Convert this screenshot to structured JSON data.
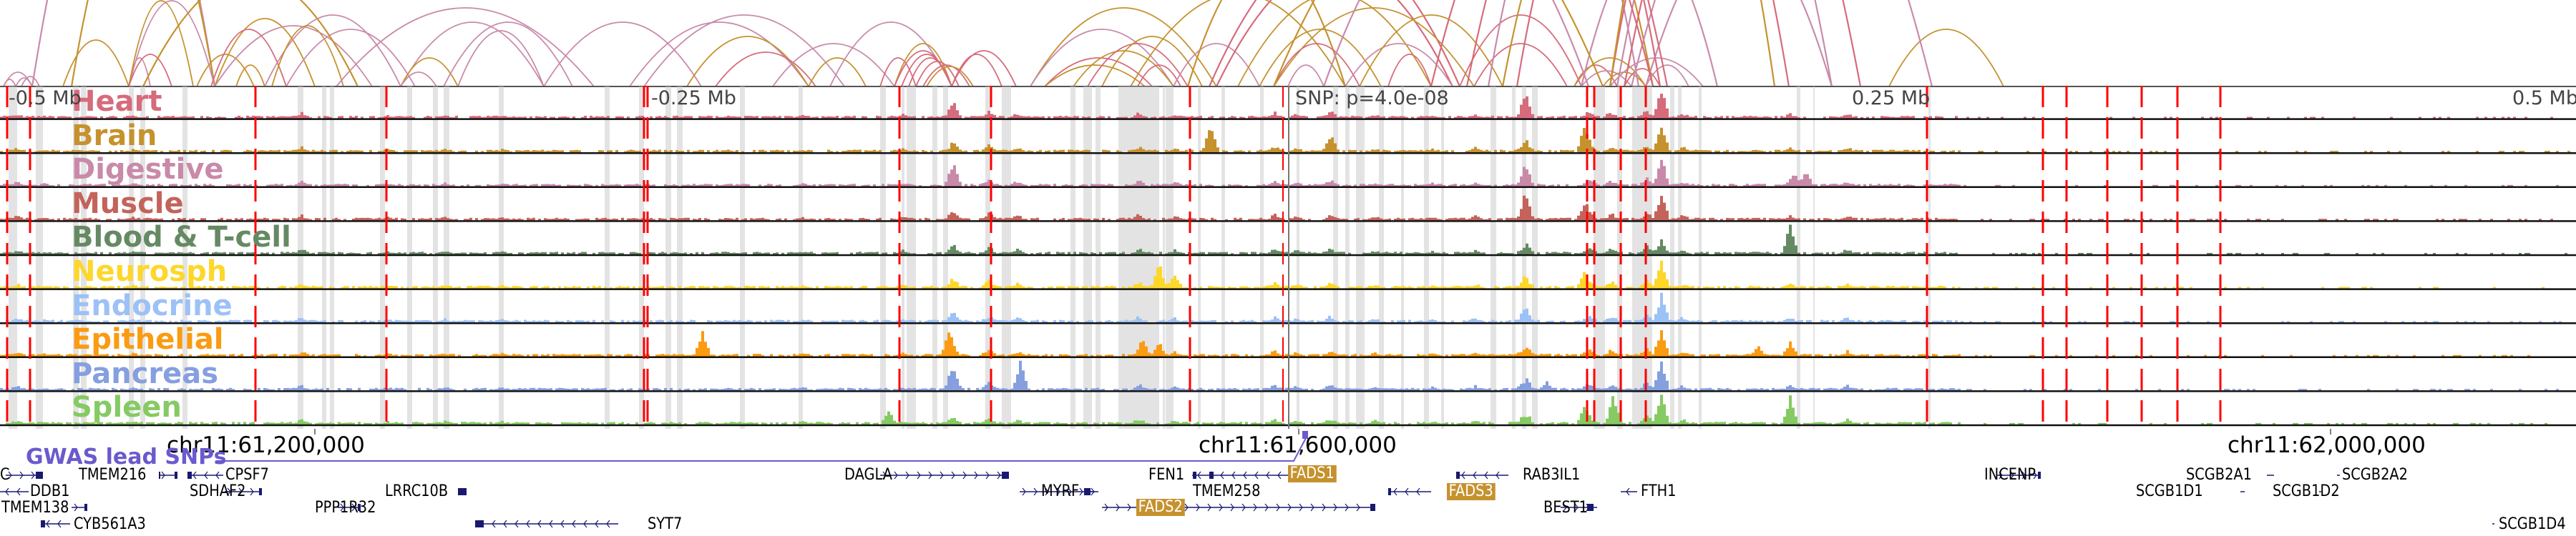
{
  "colors": {
    "heart": "#d66b7b",
    "brain": "#c5922e",
    "digestive": "#c98aaa",
    "muscle": "#c4635a",
    "blood": "#658a63",
    "neurosph": "#fdd72a",
    "endocrine": "#9cc1f7",
    "epithelial": "#fa9b11",
    "pancreas": "#859fdf",
    "spleen": "#85ca63",
    "snp_line": "#ff0000",
    "highlight_band": "#e3e3e3",
    "gwas": "#6a5acd",
    "gene": "#191970",
    "gene_highlight": "#c5922e"
  },
  "tracks": [
    {
      "name": "Heart",
      "color_key": "heart"
    },
    {
      "name": "Brain",
      "color_key": "brain"
    },
    {
      "name": "Digestive",
      "color_key": "digestive"
    },
    {
      "name": "Muscle",
      "color_key": "muscle"
    },
    {
      "name": "Blood & T-cell",
      "color_key": "blood"
    },
    {
      "name": "Neurosph",
      "color_key": "neurosph"
    },
    {
      "name": "Endocrine",
      "color_key": "endocrine"
    },
    {
      "name": "Epithelial",
      "color_key": "epithelial"
    },
    {
      "name": "Pancreas",
      "color_key": "pancreas"
    },
    {
      "name": "Spleen",
      "color_key": "spleen"
    }
  ],
  "scale_labels": [
    "-0.5 Mb",
    "-0.25 Mb",
    "SNP: p=4.0e-08",
    "0.25 Mb",
    "0.5 Mb"
  ],
  "coordinates": [
    "chr11:61,200,000",
    "chr11:61,600,000",
    "chr11:62,000,000"
  ],
  "gwas_label": "GWAS lead SNPs",
  "genes": [
    {
      "name": "C",
      "strand": "+",
      "highlight": false
    },
    {
      "name": "TMEM216",
      "strand": "+",
      "highlight": false
    },
    {
      "name": "CPSF7",
      "strand": "-",
      "highlight": false
    },
    {
      "name": "DDB1",
      "strand": "-",
      "highlight": false
    },
    {
      "name": "SDHAF2",
      "strand": "+",
      "highlight": false
    },
    {
      "name": "LRRC10B",
      "strand": "+",
      "highlight": false
    },
    {
      "name": "TMEM138",
      "strand": "+",
      "highlight": false
    },
    {
      "name": "PPP1R32",
      "strand": "+",
      "highlight": false
    },
    {
      "name": "CYB561A3",
      "strand": "-",
      "highlight": false
    },
    {
      "name": "SYT7",
      "strand": "-",
      "highlight": false
    },
    {
      "name": "DAGLA",
      "strand": "+",
      "highlight": false
    },
    {
      "name": "FEN1",
      "strand": "+",
      "highlight": false
    },
    {
      "name": "FADS1",
      "strand": "-",
      "highlight": true
    },
    {
      "name": "MYRF",
      "strand": "+",
      "highlight": false
    },
    {
      "name": "TMEM258",
      "strand": "-",
      "highlight": false
    },
    {
      "name": "FADS2",
      "strand": "+",
      "highlight": true
    },
    {
      "name": "RAB3IL1",
      "strand": "-",
      "highlight": false
    },
    {
      "name": "FADS3",
      "strand": "-",
      "highlight": true
    },
    {
      "name": "FTH1",
      "strand": "-",
      "highlight": false
    },
    {
      "name": "BEST1",
      "strand": "+",
      "highlight": false
    },
    {
      "name": "INCENP",
      "strand": "+",
      "highlight": false
    },
    {
      "name": "SCGB2A1",
      "strand": "+",
      "highlight": false
    },
    {
      "name": "SCGB2A2",
      "strand": "+",
      "highlight": false
    },
    {
      "name": "SCGB1D1",
      "strand": "+",
      "highlight": false
    },
    {
      "name": "SCGB1D2",
      "strand": "+",
      "highlight": false
    },
    {
      "name": "SCGB1D4",
      "strand": "-",
      "highlight": false
    }
  ]
}
